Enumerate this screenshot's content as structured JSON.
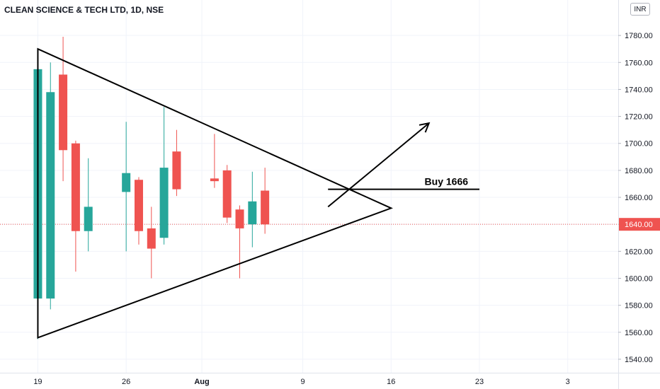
{
  "header": {
    "title": "CLEAN SCIENCE & TECH LTD, 1D, NSE",
    "currency": "INR"
  },
  "chart_data": {
    "type": "candlestick",
    "title": "CLEAN SCIENCE & TECH LTD, 1D, NSE",
    "ylim": [
      1530,
      1800
    ],
    "y_ticks": [
      1540,
      1560,
      1580,
      1600,
      1620,
      1640,
      1660,
      1680,
      1700,
      1720,
      1740,
      1760,
      1780
    ],
    "x_range": [
      "2021-07-16",
      "2021-09-03"
    ],
    "x_ticks": [
      {
        "date": "2021-07-19",
        "label": "19"
      },
      {
        "date": "2021-07-26",
        "label": "26"
      },
      {
        "date": "2021-08-01",
        "label": "Aug"
      },
      {
        "date": "2021-08-09",
        "label": "9"
      },
      {
        "date": "2021-08-16",
        "label": "16"
      },
      {
        "date": "2021-08-23",
        "label": "23"
      },
      {
        "date": "2021-08-30",
        "label": "3"
      }
    ],
    "candles": [
      {
        "date": "2021-07-19",
        "open": 1585,
        "high": 1755,
        "low": 1555,
        "close": 1755
      },
      {
        "date": "2021-07-20",
        "open": 1585,
        "high": 1760,
        "low": 1577,
        "close": 1738
      },
      {
        "date": "2021-07-21",
        "open": 1751,
        "high": 1779,
        "low": 1672,
        "close": 1695
      },
      {
        "date": "2021-07-22",
        "open": 1700,
        "high": 1702,
        "low": 1605,
        "close": 1635
      },
      {
        "date": "2021-07-23",
        "open": 1635,
        "high": 1689,
        "low": 1620,
        "close": 1653
      },
      {
        "date": "2021-07-26",
        "open": 1664,
        "high": 1716,
        "low": 1620,
        "close": 1678
      },
      {
        "date": "2021-07-27",
        "open": 1673,
        "high": 1675,
        "low": 1625,
        "close": 1635
      },
      {
        "date": "2021-07-28",
        "open": 1637,
        "high": 1653,
        "low": 1600,
        "close": 1622
      },
      {
        "date": "2021-07-29",
        "open": 1630,
        "high": 1727,
        "low": 1625,
        "close": 1682
      },
      {
        "date": "2021-07-30",
        "open": 1694,
        "high": 1710,
        "low": 1661,
        "close": 1666
      },
      {
        "date": "2021-08-02",
        "open": 1674,
        "high": 1707,
        "low": 1667,
        "close": 1672
      },
      {
        "date": "2021-08-03",
        "open": 1680,
        "high": 1684,
        "low": 1641,
        "close": 1645
      },
      {
        "date": "2021-08-04",
        "open": 1651,
        "high": 1654,
        "low": 1600,
        "close": 1637
      },
      {
        "date": "2021-08-05",
        "open": 1640,
        "high": 1679,
        "low": 1623,
        "close": 1657
      },
      {
        "date": "2021-08-06",
        "open": 1665,
        "high": 1682,
        "low": 1633,
        "close": 1640
      }
    ],
    "colors": {
      "up": "#26a69a",
      "down": "#ef5350"
    },
    "last_price": {
      "value": 1640,
      "label": "1640.00",
      "color": "#ef5350"
    },
    "drawings": {
      "triangle": [
        {
          "date": "2021-07-19",
          "price": 1770
        },
        {
          "date": "2021-08-16",
          "price": 1652
        },
        {
          "date": "2021-07-19",
          "price": 1556
        }
      ],
      "breakout_arrow": {
        "from": {
          "date": "2021-08-11",
          "price": 1653
        },
        "to": {
          "date": "2021-08-19",
          "price": 1715
        }
      },
      "buy_line": {
        "from": {
          "date": "2021-08-11",
          "price": 1666
        },
        "to": {
          "date": "2021-08-23",
          "price": 1666
        },
        "label": "Buy 1666"
      }
    }
  }
}
